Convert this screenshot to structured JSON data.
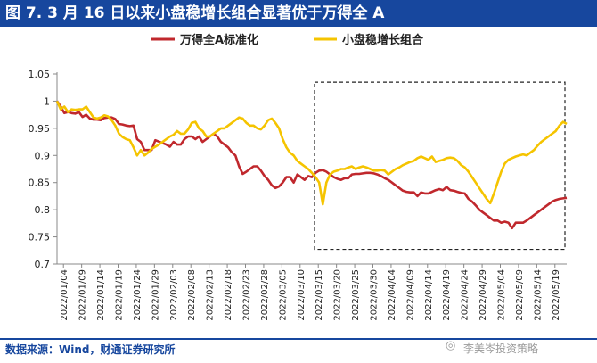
{
  "header": {
    "title": "图 7. 3 月 16 日以来小盘稳增长组合显著优于万得全 A"
  },
  "footer": {
    "source": "数据来源：Wind，财通证券研究所",
    "watermark": "李美岑投资策略"
  },
  "chart_data": {
    "type": "line",
    "title": "图 7. 3 月 16 日以来小盘稳增长组合显著优于万得全 A",
    "xlabel": "",
    "ylabel": "",
    "ylim": [
      0.7,
      1.05
    ],
    "yticks": [
      0.7,
      0.75,
      0.8,
      0.85,
      0.9,
      0.95,
      1,
      1.05
    ],
    "ytick_labels": [
      "0.7",
      "0.75",
      "0.8",
      "0.85",
      "0.9",
      "0.95",
      "1",
      "1.05"
    ],
    "grid": false,
    "legend_position": "top",
    "xtick_labels": [
      "2022/01/04",
      "2022/01/09",
      "2022/01/14",
      "2022/01/19",
      "2022/01/24",
      "2022/01/29",
      "2022/02/03",
      "2022/02/08",
      "2022/02/13",
      "2022/02/18",
      "2022/02/23",
      "2022/02/28",
      "2022/03/05",
      "2022/03/10",
      "2022/03/15",
      "2022/03/20",
      "2022/03/25",
      "2022/03/30",
      "2022/04/04",
      "2022/04/09",
      "2022/04/14",
      "2022/04/19",
      "2022/04/24",
      "2022/04/29",
      "2022/05/04",
      "2022/05/09",
      "2022/05/14",
      "2022/05/19"
    ],
    "highlight": {
      "from": "2022/03/15",
      "to": "2022/05/24",
      "ymin": 0.727,
      "ymax": 1.035,
      "style": "dashed-box"
    },
    "series": [
      {
        "name": "万得全A标准化",
        "color": "#c0282d",
        "x": [
          0,
          1,
          2,
          3,
          4,
          5,
          6,
          7,
          8,
          9,
          10,
          11,
          12,
          13,
          14,
          15,
          16,
          17,
          18,
          19,
          27,
          30,
          31,
          32,
          33,
          34,
          35,
          36,
          37,
          38,
          39,
          40,
          41,
          42,
          43,
          44,
          45,
          46,
          47,
          48,
          49,
          50,
          51,
          52,
          53,
          54,
          55,
          56,
          57,
          58,
          59,
          60,
          61,
          62,
          65,
          66,
          67,
          68,
          69,
          70,
          71,
          72,
          73,
          74,
          75,
          76,
          77,
          78,
          79,
          80,
          81,
          82,
          83,
          84,
          85,
          86,
          87,
          88,
          89,
          90,
          91,
          92,
          93,
          94,
          95,
          96,
          97,
          98,
          99,
          100,
          103,
          104,
          105,
          106,
          107,
          108,
          109,
          110,
          111,
          112,
          113,
          114,
          115,
          116,
          117,
          118,
          119,
          120,
          121,
          122,
          123,
          124,
          125,
          126,
          127,
          128,
          129,
          130,
          131,
          132,
          133,
          134,
          135,
          136,
          137,
          138,
          139,
          140
        ],
        "values": [
          1.0,
          0.99,
          0.978,
          0.98,
          0.978,
          0.977,
          0.98,
          0.971,
          0.975,
          0.968,
          0.966,
          0.966,
          0.965,
          0.969,
          0.97,
          0.97,
          0.967,
          0.958,
          0.957,
          0.955,
          0.928,
          0.92,
          0.916,
          0.925,
          0.92,
          0.92,
          0.93,
          0.935,
          0.935,
          0.93,
          0.935,
          0.925,
          0.93,
          0.935,
          0.94,
          0.935,
          0.925,
          0.92,
          0.915,
          0.906,
          0.9,
          0.88,
          0.866,
          0.87,
          0.875,
          0.88,
          0.88,
          0.872,
          0.862,
          0.855,
          0.845,
          0.84,
          0.843,
          0.85,
          0.85,
          0.865,
          0.86,
          0.855,
          0.862,
          0.86,
          0.868,
          0.872,
          0.873,
          0.87,
          0.865,
          0.86,
          0.857,
          0.855,
          0.858,
          0.858,
          0.865,
          0.866,
          0.866,
          0.867,
          0.868,
          0.868,
          0.867,
          0.865,
          0.862,
          0.858,
          0.855,
          0.85,
          0.845,
          0.84,
          0.835,
          0.833,
          0.832,
          0.832,
          0.825,
          0.832,
          0.833,
          0.836,
          0.838,
          0.836,
          0.842,
          0.836,
          0.835,
          0.833,
          0.831,
          0.83,
          0.82,
          0.815,
          0.808,
          0.8,
          0.795,
          0.79,
          0.785,
          0.78,
          0.78,
          0.776,
          0.778,
          0.776,
          0.766,
          0.776,
          0.776,
          0.776,
          0.78,
          0.785,
          0.79,
          0.795,
          0.8,
          0.805,
          0.81,
          0.815,
          0.818,
          0.82,
          0.821,
          0.822
        ],
        "extra_points": [
          {
            "x": 20,
            "y": 0.954
          },
          {
            "x": 21,
            "y": 0.955
          },
          {
            "x": 22,
            "y": 0.93
          },
          {
            "x": 23,
            "y": 0.925
          },
          {
            "x": 24,
            "y": 0.91
          },
          {
            "x": 25,
            "y": 0.91
          },
          {
            "x": 26,
            "y": 0.91
          },
          {
            "x": 63,
            "y": 0.86
          },
          {
            "x": 64,
            "y": 0.86
          },
          {
            "x": 101,
            "y": 0.83
          },
          {
            "x": 102,
            "y": 0.83
          }
        ]
      },
      {
        "name": "小盘稳增长组合",
        "color": "#f5c400",
        "x": [
          0,
          1,
          2,
          3,
          4,
          5,
          6,
          7,
          8,
          9,
          10,
          11,
          12,
          13,
          14,
          15,
          16,
          17,
          18,
          19,
          20,
          21,
          22,
          23,
          24,
          25,
          26,
          27,
          28,
          29,
          30,
          31,
          32,
          33,
          34,
          35,
          36,
          37,
          38,
          39,
          40,
          41,
          42,
          43,
          44,
          45,
          46,
          47,
          48,
          49,
          50,
          51,
          52,
          53,
          54,
          55,
          56,
          57,
          58,
          59,
          60,
          61,
          62,
          63,
          64,
          65,
          66,
          67,
          68,
          69,
          70,
          71,
          72,
          73,
          74,
          75,
          76,
          77,
          78,
          79,
          80,
          81,
          82,
          83,
          84,
          85,
          86,
          87,
          88,
          89,
          90,
          91,
          92,
          93,
          94,
          95,
          96,
          97,
          98,
          99,
          100,
          101,
          102,
          103,
          104,
          105,
          106,
          107,
          108,
          109,
          110,
          111,
          112,
          113,
          114,
          115,
          116,
          117,
          118,
          119,
          120,
          121,
          122,
          123,
          124,
          125,
          126,
          127,
          128,
          129,
          130,
          131,
          132,
          133,
          134,
          135,
          136,
          137,
          138,
          139,
          140
        ],
        "values": [
          1.0,
          0.985,
          0.99,
          0.98,
          0.985,
          0.984,
          0.985,
          0.985,
          0.99,
          0.98,
          0.97,
          0.968,
          0.97,
          0.974,
          0.972,
          0.965,
          0.955,
          0.94,
          0.934,
          0.93,
          0.928,
          0.915,
          0.9,
          0.91,
          0.9,
          0.905,
          0.912,
          0.916,
          0.92,
          0.925,
          0.93,
          0.935,
          0.938,
          0.945,
          0.94,
          0.94,
          0.948,
          0.96,
          0.962,
          0.95,
          0.945,
          0.935,
          0.935,
          0.94,
          0.945,
          0.95,
          0.95,
          0.955,
          0.96,
          0.965,
          0.97,
          0.968,
          0.96,
          0.955,
          0.955,
          0.95,
          0.948,
          0.955,
          0.965,
          0.968,
          0.96,
          0.95,
          0.93,
          0.915,
          0.905,
          0.9,
          0.89,
          0.885,
          0.88,
          0.875,
          0.868,
          0.86,
          0.85,
          0.81,
          0.85,
          0.865,
          0.87,
          0.872,
          0.875,
          0.875,
          0.878,
          0.88,
          0.875,
          0.878,
          0.88,
          0.878,
          0.875,
          0.872,
          0.872,
          0.873,
          0.872,
          0.865,
          0.87,
          0.875,
          0.878,
          0.882,
          0.885,
          0.888,
          0.89,
          0.895,
          0.898,
          0.895,
          0.892,
          0.898,
          0.888,
          0.89,
          0.892,
          0.895,
          0.896,
          0.895,
          0.89,
          0.882,
          0.878,
          0.87,
          0.86,
          0.85,
          0.84,
          0.83,
          0.82,
          0.812,
          0.83,
          0.85,
          0.87,
          0.885,
          0.892,
          0.895,
          0.898,
          0.9,
          0.902,
          0.9,
          0.905,
          0.91,
          0.918,
          0.925,
          0.93,
          0.935,
          0.94,
          0.945,
          0.955,
          0.962,
          0.958
        ]
      }
    ]
  }
}
